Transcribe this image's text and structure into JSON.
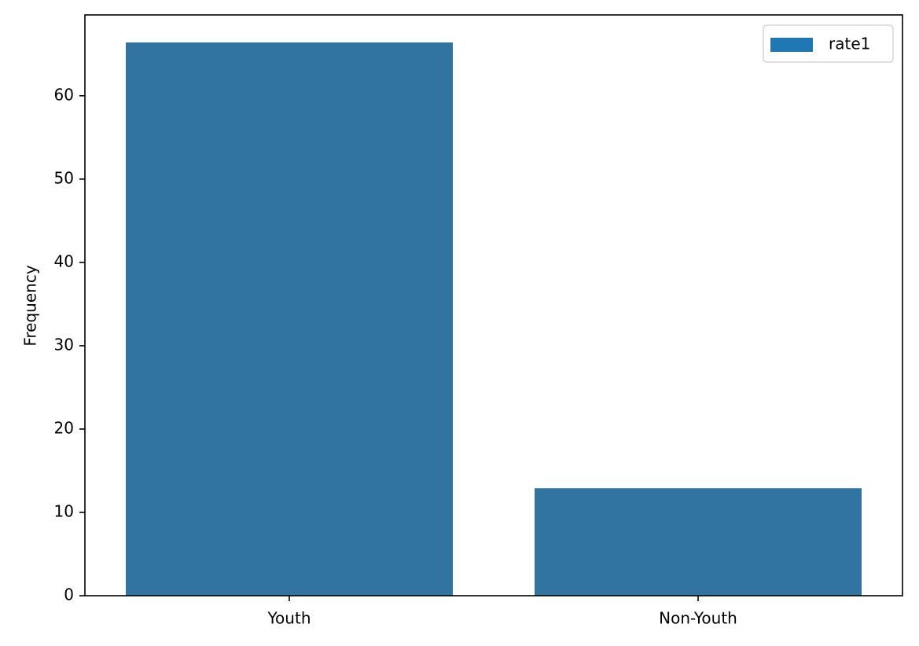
{
  "chart_data": {
    "type": "bar",
    "categories": [
      "Youth",
      "Non-Youth"
    ],
    "series": [
      {
        "name": "rate1",
        "values": [
          66.4,
          12.9
        ]
      }
    ],
    "xlabel": "",
    "ylabel": "Frequency",
    "ylim": [
      0,
      69.7
    ],
    "yticks": [
      0,
      10,
      20,
      30,
      40,
      50,
      60
    ],
    "grid": false,
    "legend_position": "top-right",
    "colors": {
      "bar": "#3274a1",
      "legend_swatch": "#1f77b4"
    }
  }
}
